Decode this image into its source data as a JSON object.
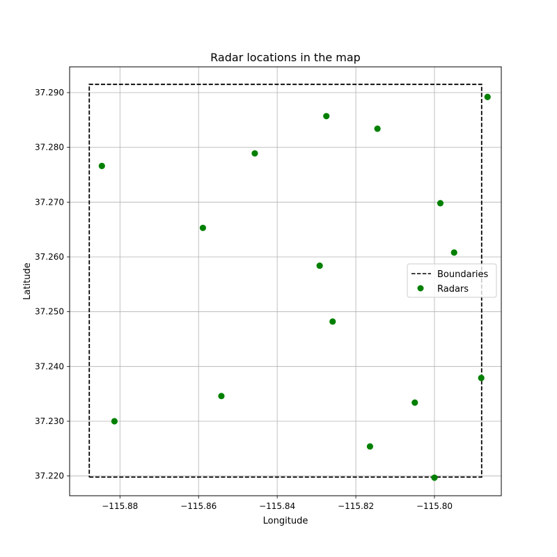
{
  "chart_data": {
    "type": "scatter",
    "title": "Radar locations in the map",
    "xlabel": "Longitude",
    "ylabel": "Latitude",
    "xlim": [
      -115.8928,
      -115.783
    ],
    "ylim": [
      37.2164,
      37.2947
    ],
    "grid": true,
    "legend_position": "center-right",
    "x_ticks": [
      -115.88,
      -115.86,
      -115.84,
      -115.82,
      -115.8
    ],
    "x_tick_labels": [
      "−115.88",
      "−115.86",
      "−115.84",
      "−115.82",
      "−115.80"
    ],
    "y_ticks": [
      37.22,
      37.23,
      37.24,
      37.25,
      37.26,
      37.27,
      37.28,
      37.29
    ],
    "y_tick_labels": [
      "37.220",
      "37.230",
      "37.240",
      "37.250",
      "37.260",
      "37.270",
      "37.280",
      "37.290"
    ],
    "boundaries": {
      "name": "Boundaries",
      "color": "#000000",
      "style": "dashed",
      "x": [
        -115.8878,
        -115.788,
        -115.788,
        -115.8878,
        -115.8878
      ],
      "y": [
        37.2198,
        37.2198,
        37.2915,
        37.2915,
        37.2198
      ]
    },
    "series": [
      {
        "name": "Radars",
        "color": "#008000",
        "points": [
          {
            "x": -115.7865,
            "y": 37.2892
          },
          {
            "x": -115.8275,
            "y": 37.2857
          },
          {
            "x": -115.8145,
            "y": 37.2834
          },
          {
            "x": -115.8457,
            "y": 37.2789
          },
          {
            "x": -115.8846,
            "y": 37.2766
          },
          {
            "x": -115.7985,
            "y": 37.2698
          },
          {
            "x": -115.8589,
            "y": 37.2653
          },
          {
            "x": -115.795,
            "y": 37.2608
          },
          {
            "x": -115.8292,
            "y": 37.2584
          },
          {
            "x": -115.8259,
            "y": 37.2482
          },
          {
            "x": -115.7881,
            "y": 37.2379
          },
          {
            "x": -115.8542,
            "y": 37.2346
          },
          {
            "x": -115.805,
            "y": 37.2334
          },
          {
            "x": -115.8814,
            "y": 37.23
          },
          {
            "x": -115.8164,
            "y": 37.2254
          },
          {
            "x": -115.8,
            "y": 37.2197
          }
        ]
      }
    ]
  }
}
